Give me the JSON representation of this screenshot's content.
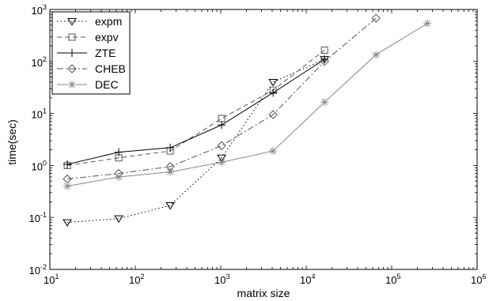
{
  "chart_data": {
    "type": "line",
    "title": "",
    "xlabel": "matrix size",
    "ylabel": "time(sec)",
    "xscale": "log",
    "yscale": "log",
    "xlim": [
      10,
      1000000
    ],
    "ylim": [
      0.01,
      1000
    ],
    "grid": false,
    "legend_position": "top-left",
    "x_ticks": [
      {
        "base": "10",
        "exp": "1"
      },
      {
        "base": "10",
        "exp": "2"
      },
      {
        "base": "10",
        "exp": "3"
      },
      {
        "base": "10",
        "exp": "4"
      },
      {
        "base": "10",
        "exp": "5"
      },
      {
        "base": "10",
        "exp": "6"
      }
    ],
    "y_ticks": [
      {
        "base": "10",
        "exp": "-2"
      },
      {
        "base": "10",
        "exp": "-1"
      },
      {
        "base": "10",
        "exp": "0"
      },
      {
        "base": "10",
        "exp": "1"
      },
      {
        "base": "10",
        "exp": "2"
      },
      {
        "base": "10",
        "exp": "3"
      }
    ],
    "series": [
      {
        "name": "expm",
        "color": "#000000",
        "dash": "1.5,3",
        "marker": "triangle-down",
        "x": [
          16,
          64,
          256,
          1024,
          4096,
          16384
        ],
        "y": [
          0.08,
          0.095,
          0.17,
          1.4,
          40,
          110
        ]
      },
      {
        "name": "expv",
        "color": "#555555",
        "dash": "6,4",
        "marker": "square",
        "x": [
          16,
          64,
          256,
          1024,
          4096,
          16384
        ],
        "y": [
          1.0,
          1.4,
          1.9,
          8,
          28,
          165
        ]
      },
      {
        "name": "ZTE",
        "color": "#000000",
        "dash": "",
        "marker": "plus",
        "x": [
          16,
          64,
          256,
          1024,
          4096,
          16384
        ],
        "y": [
          1.05,
          1.8,
          2.2,
          6,
          25,
          110
        ]
      },
      {
        "name": "CHEB",
        "color": "#555555",
        "dash": "8,3,2,3",
        "marker": "diamond",
        "x": [
          16,
          64,
          256,
          1024,
          4096,
          16384,
          65536
        ],
        "y": [
          0.55,
          0.7,
          0.95,
          2.4,
          9.5,
          100,
          680
        ]
      },
      {
        "name": "DEC",
        "color": "#888888",
        "dash": "",
        "marker": "asterisk",
        "x": [
          16,
          64,
          256,
          1024,
          4096,
          16384,
          65536,
          262144
        ],
        "y": [
          0.4,
          0.6,
          0.75,
          1.15,
          1.9,
          16.5,
          135,
          540
        ]
      }
    ]
  }
}
